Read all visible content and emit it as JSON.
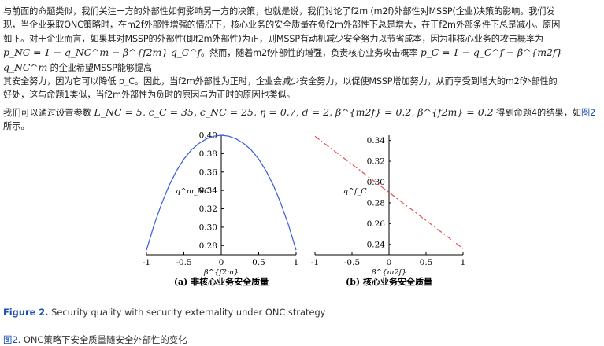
{
  "paragraph": {
    "line1": "与前面的命题类似，我们关注一方的外部性如何影响另一方的决策，也就是说，我们讨论了f2m (m2f)外部性对MSSP(企业)决策的影响。我们发",
    "line2": "现，当企业采取ONC策略时，在m2f外部性增强的情况下，核心业务的安全质量在负f2m外部性下总是增大，在正f2m外部条件下总是减小。原因",
    "line3": "如下。对于企业而言，如果其对MSSP的外部性(即f2m外部性)为正，则MSSP有动机减少安全努力以节省成本，因为非核心业务的攻击概率为",
    "line4_math": "p_NC = 1 − q_NC^m − β^{f2m} q_C^f",
    "line4_text": "。然而，随着m2f外部性的增强，负责核心业务攻击概率 ",
    "line4_math2": "p_C = 1 − q_C^f − β^{m2f} q_NC^m",
    "line4_text2": " 的企业希望MSSP能够提高",
    "line5": "其安全努力，因为它可以降低 p_C。因此，当f2m外部性为正时，企业会减少安全努力，以促使MSSP增加努力，从而享受到增大的m2f外部性的",
    "line6": "好处，这与命题1类似，当f2m外部性为负时的原因与为正时的原因也类似。"
  },
  "param_line": {
    "prefix": "我们可以通过设置参数 ",
    "math": "L_NC = 5, c_C = 35, c_NC = 25, η = 0.7, d = 2, β^{m2f} = 0.2, β^{f2m} = 0.2",
    "suffix": " 得到命题4的结果，如",
    "link": "图2",
    "end": "所示。"
  },
  "chart_data": [
    {
      "type": "line",
      "title": "(a) 非核心业务安全质量",
      "xlabel": "β^{f2m}",
      "ylabel": "q^m_NC",
      "xlim": [
        -1,
        1
      ],
      "ylim": [
        0.27,
        0.4
      ],
      "xticks": [
        "-1",
        "-0.5",
        "0",
        "0.5",
        "1"
      ],
      "yticks": [
        "0.40",
        "0.38",
        "0.36",
        "0.34",
        "0.32",
        "0.30",
        "0.28"
      ],
      "series": [
        {
          "color": "#3b5bdb",
          "style": "solid",
          "x": [
            -1,
            -0.9,
            -0.8,
            -0.7,
            -0.6,
            -0.5,
            -0.4,
            -0.3,
            -0.2,
            -0.1,
            0,
            0.1,
            0.2,
            0.3,
            0.4,
            0.5,
            0.6,
            0.7,
            0.8,
            0.9,
            1
          ],
          "y": [
            0.275,
            0.302,
            0.325,
            0.345,
            0.361,
            0.374,
            0.384,
            0.391,
            0.396,
            0.399,
            0.4,
            0.399,
            0.396,
            0.391,
            0.384,
            0.374,
            0.361,
            0.345,
            0.325,
            0.302,
            0.275
          ]
        }
      ]
    },
    {
      "type": "line",
      "title": "(b) 核心业务安全质量",
      "xlabel": "β^{m2f}",
      "ylabel": "q^f_C",
      "xlim": [
        -1,
        1
      ],
      "ylim": [
        0.23,
        0.345
      ],
      "xticks": [
        "-1",
        "-0.5",
        "0",
        "0.5",
        "1"
      ],
      "yticks": [
        "0.34",
        "0.32",
        "0.30",
        "0.28",
        "0.26",
        "0.24"
      ],
      "series": [
        {
          "color": "#e05050",
          "style": "dash-dot",
          "x": [
            -1,
            1
          ],
          "y": [
            0.344,
            0.236
          ]
        }
      ]
    }
  ],
  "caption_en": {
    "label": "Figure 2.",
    "text": " Security quality with security externality under ONC strategy"
  },
  "caption_zh": {
    "label": "图2",
    "text": ". ONC策略下安全质量随安全外部性的变化"
  }
}
